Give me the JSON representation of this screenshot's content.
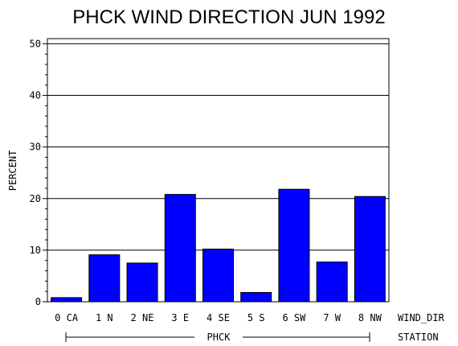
{
  "chart_data": {
    "type": "bar",
    "title": "PHCK WIND DIRECTION JUN 1992",
    "ylabel": "PERCENT",
    "xlabel": "WIND_DIR",
    "group_label": "PHCK",
    "group_axis_label": "STATION",
    "categories": [
      "0 CA",
      "1 N",
      "2 NE",
      "3 E",
      "4 SE",
      "5 S",
      "6 SW",
      "7 W",
      "8 NW"
    ],
    "values": [
      0.8,
      9.1,
      7.5,
      20.8,
      10.2,
      1.8,
      21.8,
      7.7,
      20.4
    ],
    "ylim": [
      0,
      51
    ],
    "yticks": [
      0,
      10,
      20,
      30,
      40,
      50
    ],
    "grid": true,
    "bar_color": "#0000ff"
  }
}
